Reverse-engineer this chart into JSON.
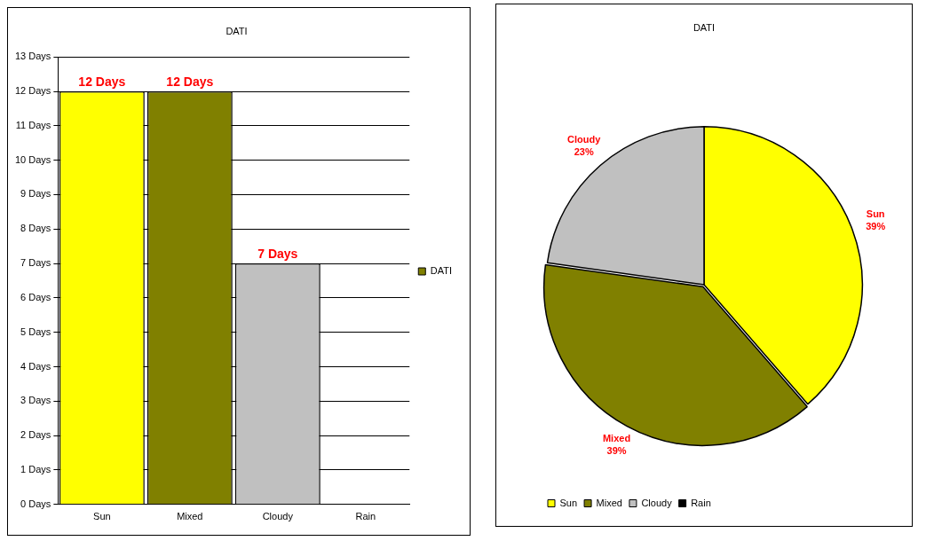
{
  "chart_data": [
    {
      "type": "bar",
      "title": "DATI",
      "categories": [
        "Sun",
        "Mixed",
        "Cloudy",
        "Rain"
      ],
      "series": [
        {
          "name": "DATI",
          "color": "#808000",
          "colors": [
            "#ffff00",
            "#808000",
            "#c0c0c0",
            "#000000"
          ],
          "values": [
            12,
            12,
            7,
            0
          ],
          "value_labels": [
            "12 Days",
            "12 Days",
            "7 Days",
            null
          ]
        }
      ],
      "ylim": [
        0,
        13
      ],
      "yticks": [
        {
          "value": 0,
          "label": "0 Days"
        },
        {
          "value": 1,
          "label": "1 Days"
        },
        {
          "value": 2,
          "label": "2 Days"
        },
        {
          "value": 3,
          "label": "3 Days"
        },
        {
          "value": 4,
          "label": "4 Days"
        },
        {
          "value": 5,
          "label": "5 Days"
        },
        {
          "value": 6,
          "label": "6 Days"
        },
        {
          "value": 7,
          "label": "7 Days"
        },
        {
          "value": 8,
          "label": "8 Days"
        },
        {
          "value": 9,
          "label": "9 Days"
        },
        {
          "value": 10,
          "label": "10 Days"
        },
        {
          "value": 11,
          "label": "11 Days"
        },
        {
          "value": 12,
          "label": "12 Days"
        },
        {
          "value": 13,
          "label": "13 Days"
        }
      ],
      "grid": "y",
      "legend": "right"
    },
    {
      "type": "pie",
      "title": "DATI",
      "categories": [
        "Sun",
        "Mixed",
        "Cloudy",
        "Rain"
      ],
      "values": [
        39,
        39,
        23,
        0
      ],
      "colors": [
        "#ffff00",
        "#808000",
        "#c0c0c0",
        "#000000"
      ],
      "value_labels": [
        "39%",
        "39%",
        "23%",
        null
      ],
      "legend": "bottom left"
    }
  ]
}
